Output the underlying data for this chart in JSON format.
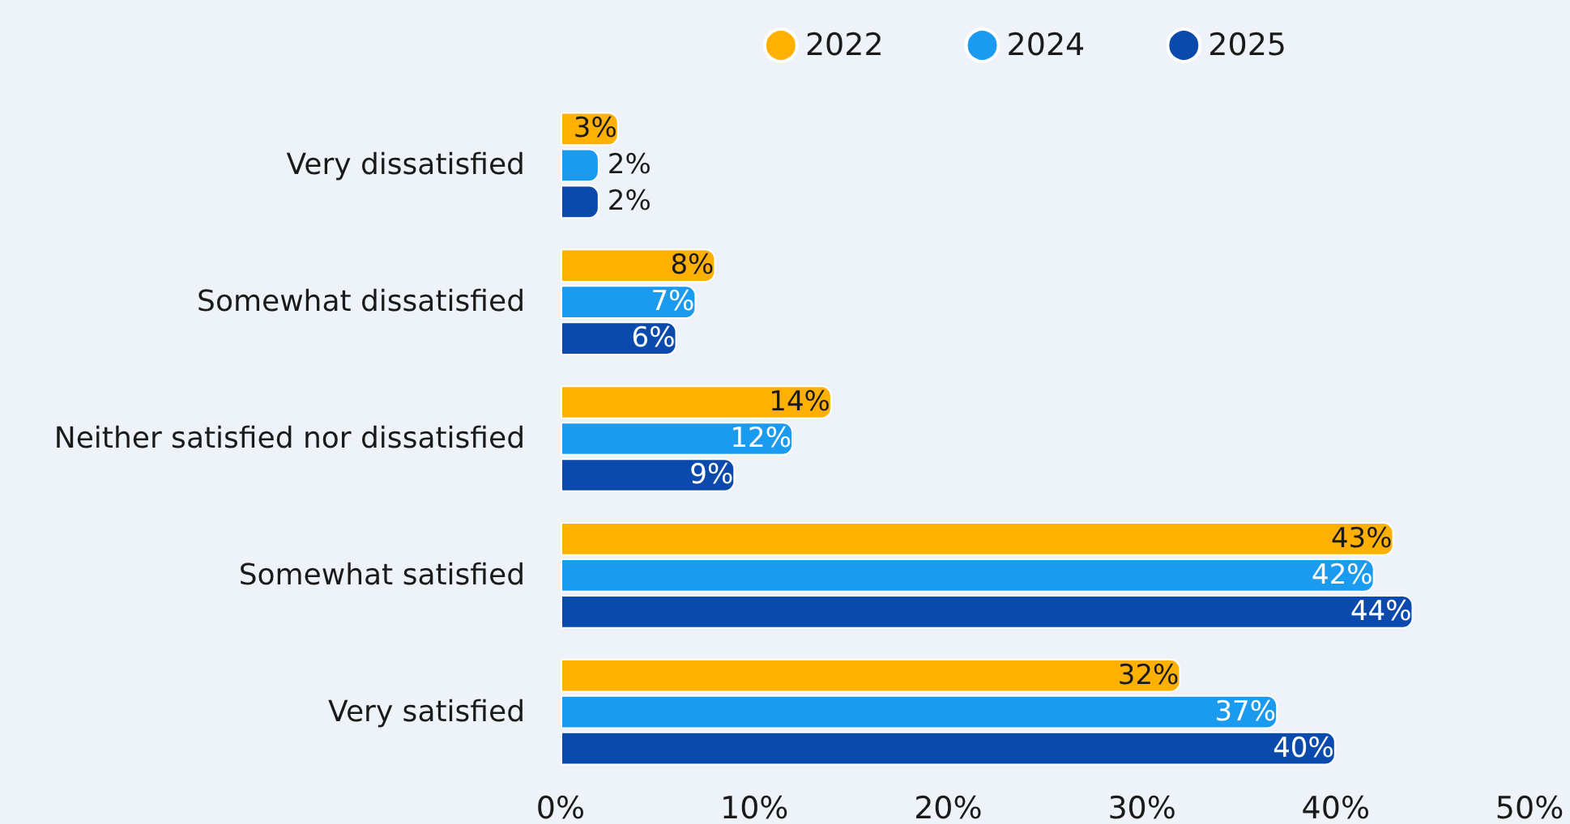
{
  "chart_data": {
    "type": "bar",
    "orientation": "horizontal",
    "categories": [
      "Very dissatisfied",
      "Somewhat dissatisfied",
      "Neither satisfied nor dissatisfied",
      "Somewhat satisfied",
      "Very satisfied"
    ],
    "series": [
      {
        "name": "2022",
        "color": "#ffb000",
        "values": [
          3,
          8,
          14,
          43,
          32
        ],
        "value_labels": [
          "3%",
          "8%",
          "14%",
          "43%",
          "32%"
        ]
      },
      {
        "name": "2024",
        "color": "#1a9bf0",
        "values": [
          2,
          7,
          12,
          42,
          37
        ],
        "value_labels": [
          "2%",
          "7%",
          "12%",
          "42%",
          "37%"
        ]
      },
      {
        "name": "2025",
        "color": "#0a4aad",
        "values": [
          2,
          6,
          9,
          44,
          40
        ],
        "value_labels": [
          "2%",
          "6%",
          "9%",
          "44%",
          "40%"
        ]
      }
    ],
    "xlim": [
      0,
      50
    ],
    "xticks": [
      {
        "value": 0,
        "label": "0%"
      },
      {
        "value": 10,
        "label": "10%"
      },
      {
        "value": 20,
        "label": "20%"
      },
      {
        "value": 30,
        "label": "30%"
      },
      {
        "value": 40,
        "label": "40%"
      },
      {
        "value": 50,
        "label": "50%"
      }
    ],
    "grid": false,
    "legend": "top right"
  }
}
